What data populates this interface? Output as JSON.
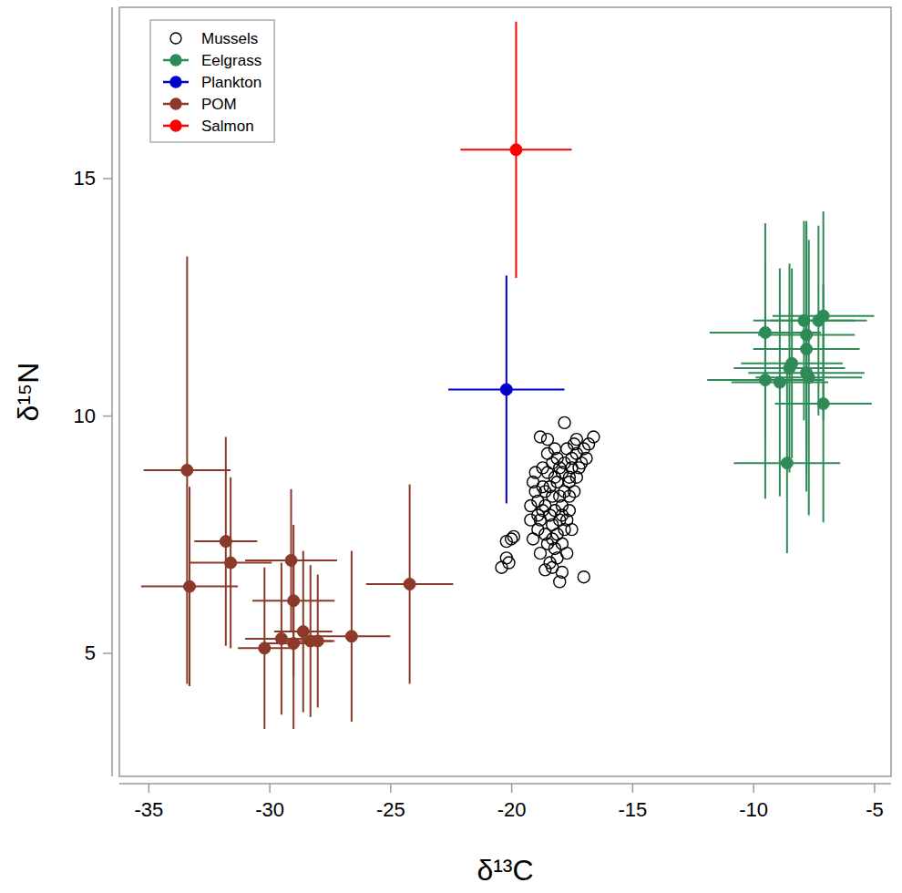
{
  "chart_data": {
    "type": "scatter",
    "x_label": "δ¹³C",
    "y_label": "δ¹⁵N",
    "xlim": [
      -36.2,
      -4.3
    ],
    "ylim": [
      2.4,
      18.6
    ],
    "xticks": [
      -35,
      -30,
      -25,
      -20,
      -15,
      -10,
      -5
    ],
    "yticks": [
      5,
      10,
      15
    ],
    "legend": "top-left",
    "grid": false,
    "series": [
      {
        "name": "Mussels",
        "color": "#000000",
        "marker": "open-circle",
        "x": [
          -20.4,
          -20.2,
          -20.1,
          -20.2,
          -19.9,
          -20.0,
          -19.2,
          -19.0,
          -18.8,
          -18.5,
          -18.7,
          -18.9,
          -18.6,
          -18.4,
          -18.3,
          -18.2,
          -18.1,
          -17.8,
          -17.3,
          -17.0,
          -16.8,
          -16.6,
          -17.1,
          -17.3,
          -17.5,
          -17.6,
          -17.8,
          -17.9,
          -18.0,
          -18.1,
          -18.2,
          -18.4,
          -18.6,
          -18.3,
          -18.0,
          -17.9,
          -17.0,
          -18.5,
          -18.8,
          -19.1,
          -18.9,
          -18.7,
          -18.5,
          -18.3,
          -18.0,
          -17.7,
          -17.5,
          -17.4,
          -17.6,
          -17.8,
          -18.2,
          -18.4,
          -18.6,
          -19.0,
          -19.2,
          -18.8,
          -18.3,
          -17.9,
          -17.7,
          -18.1,
          -17.9,
          -17.6,
          -17.3,
          -17.2,
          -17.4,
          -16.9,
          -18.5,
          -18.7,
          -18.9,
          -19.1,
          -18.0,
          -17.7,
          -18.3,
          -17.5,
          -18.1,
          -18.6,
          -17.8,
          -18.2,
          -17.6,
          -17.9
        ],
        "values": [
          6.8,
          7.0,
          6.9,
          7.35,
          7.45,
          7.4,
          7.8,
          8.8,
          9.55,
          9.5,
          8.0,
          7.6,
          7.5,
          7.9,
          8.3,
          8.7,
          9.1,
          9.85,
          9.5,
          9.3,
          9.4,
          9.55,
          9.0,
          9.2,
          8.9,
          8.6,
          8.4,
          8.1,
          7.8,
          7.5,
          7.2,
          6.9,
          6.75,
          6.8,
          6.5,
          6.7,
          6.6,
          7.3,
          7.1,
          7.4,
          8.2,
          8.5,
          8.8,
          9.0,
          8.9,
          9.3,
          9.1,
          8.4,
          8.0,
          7.6,
          8.0,
          8.5,
          8.1,
          8.4,
          8.1,
          7.8,
          7.7,
          7.3,
          7.1,
          8.6,
          8.8,
          8.3,
          8.7,
          8.9,
          9.4,
          9.1,
          9.2,
          8.9,
          7.9,
          8.6,
          8.3,
          7.8,
          7.4,
          7.6,
          7.0,
          8.4,
          9.0,
          9.3,
          8.7,
          7.9
        ]
      },
      {
        "name": "Eelgrass",
        "color": "#2e8b57",
        "marker": "circle",
        "x": [
          -9.5,
          -9.5,
          -8.9,
          -8.6,
          -8.5,
          -8.4,
          -7.9,
          -7.8,
          -7.8,
          -7.8,
          -7.7,
          -7.3,
          -7.1,
          -7.1
        ],
        "values": [
          11.75,
          10.75,
          10.7,
          9.0,
          11.0,
          11.1,
          12.0,
          11.7,
          11.4,
          10.9,
          10.8,
          12.0,
          12.1,
          10.25
        ],
        "x_error": [
          2.3,
          2.4,
          2.0,
          2.2,
          2.3,
          2.1,
          2.1,
          2.0,
          2.2,
          2.4,
          2.2,
          2.0,
          2.1,
          2.0
        ],
        "y_error": [
          2.3,
          2.5,
          2.4,
          1.9,
          2.2,
          2.0,
          2.1,
          2.4,
          2.6,
          2.5,
          2.9,
          2.0,
          2.2,
          2.5
        ]
      },
      {
        "name": "Plankton",
        "color": "#0000cd",
        "marker": "circle",
        "x": [
          -20.2
        ],
        "values": [
          10.55
        ],
        "x_error": [
          2.4
        ],
        "y_error": [
          2.4
        ]
      },
      {
        "name": "POM",
        "color": "#8b3a2a",
        "marker": "circle",
        "x": [
          -33.4,
          -33.3,
          -31.8,
          -31.6,
          -30.2,
          -29.5,
          -29.1,
          -29.0,
          -29.0,
          -28.6,
          -28.3,
          -28.0,
          -26.6,
          -24.2
        ],
        "values": [
          8.85,
          6.4,
          7.35,
          6.9,
          5.1,
          5.3,
          6.95,
          6.1,
          5.2,
          5.45,
          5.25,
          5.25,
          5.35,
          6.45
        ],
        "x_error": [
          1.8,
          2.0,
          1.3,
          1.7,
          1.1,
          1.5,
          1.9,
          1.7,
          1.1,
          1.2,
          1.0,
          0.6,
          1.6,
          1.8
        ],
        "y_error": [
          4.5,
          2.1,
          2.2,
          1.8,
          1.7,
          1.6,
          1.5,
          1.6,
          1.8,
          1.7,
          1.6,
          1.4,
          1.8,
          2.1
        ]
      },
      {
        "name": "Salmon",
        "color": "#ff0000",
        "marker": "circle",
        "x": [
          -19.8
        ],
        "values": [
          15.6
        ],
        "x_error": [
          2.3
        ],
        "y_error": [
          2.7
        ]
      }
    ]
  }
}
